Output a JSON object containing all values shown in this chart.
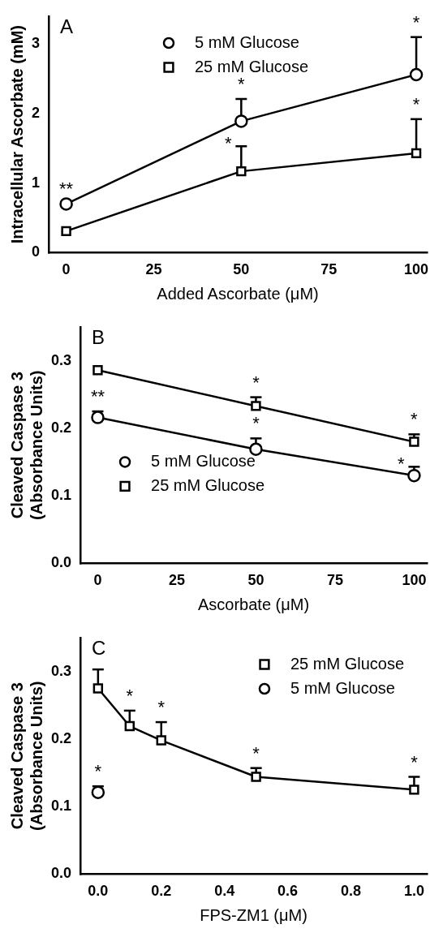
{
  "chart_data": [
    {
      "type": "line",
      "title": "A",
      "xlabel": "Added Ascorbate (μM)",
      "ylabel": "Intracellular Ascorbate (mM)",
      "x": [
        0,
        50,
        100
      ],
      "xlim": [
        -5,
        103
      ],
      "xticks": [
        0,
        25,
        50,
        75,
        100
      ],
      "ylim": [
        0,
        3.4
      ],
      "yticks": [
        0,
        1,
        2,
        3
      ],
      "grid": false,
      "legend": "top",
      "series": [
        {
          "name": "5 mM Glucose",
          "color": "#000000",
          "marker": "circle",
          "values": [
            0.7,
            1.89,
            2.56
          ],
          "errors": [
            null,
            [
              1.89,
              2.21
            ],
            [
              2.56,
              3.1
            ]
          ]
        },
        {
          "name": "25 mM Glucose",
          "color": "#000000",
          "marker": "square",
          "values": [
            0.31,
            1.17,
            1.43
          ],
          "errors": [
            null,
            [
              1.17,
              1.53
            ],
            [
              1.43,
              1.92
            ]
          ]
        }
      ],
      "annotations": [
        {
          "text": "*",
          "x": 100,
          "y": 3.1
        },
        {
          "text": "*",
          "x": 50,
          "y": 2.21
        },
        {
          "text": "*",
          "x": 100,
          "y": 1.92
        },
        {
          "text": "*",
          "x": 50,
          "y": 1.53
        },
        {
          "text": "**",
          "x": 0,
          "y": 0.7
        }
      ]
    },
    {
      "type": "line",
      "title": "B",
      "xlabel": "Ascorbate (μM)",
      "ylabel": "Cleaved Caspase 3 (Absorbance Units)",
      "x": [
        0,
        50,
        100
      ],
      "xlim": [
        -5.5,
        104
      ],
      "xticks": [
        0,
        25,
        50,
        75,
        100
      ],
      "ylim": [
        0,
        0.35
      ],
      "yticks": [
        {
          "value": 0,
          "label": "0.0"
        },
        0.1,
        0.2,
        0.3
      ],
      "grid": false,
      "legend": "bottom left",
      "series": [
        {
          "name": "5 mM Glucose",
          "color": "#000000",
          "marker": "circle",
          "values": [
            0.216,
            0.169,
            0.13
          ],
          "errors": [
            [
              0.216,
              0.225
            ],
            [
              0.169,
              0.185
            ],
            [
              0.13,
              0.143
            ]
          ]
        },
        {
          "name": "25 mM Glucose",
          "color": "#000000",
          "marker": "square",
          "values": [
            0.286,
            0.233,
            0.18
          ],
          "errors": [
            null,
            [
              0.233,
              0.246
            ],
            [
              0.18,
              0.191
            ]
          ]
        }
      ],
      "annotations": [
        {
          "text": "**",
          "x": 0,
          "y": 0.225
        },
        {
          "text": "*",
          "x": 50,
          "y": 0.246
        },
        {
          "text": "*",
          "x": 50,
          "y": 0.185
        },
        {
          "text": "*",
          "x": 100,
          "y": 0.191
        },
        {
          "text": "*",
          "x": 100,
          "y": 0.143
        }
      ]
    },
    {
      "type": "line",
      "title": "C",
      "xlabel": "FPS-ZM1 (μM)",
      "ylabel": "Cleaved Caspase 3 (Absorbance Units)",
      "x": [
        0,
        0.1,
        0.2,
        0.5,
        1
      ],
      "xlim": [
        -0.056,
        1.04
      ],
      "xticks": [
        {
          "value": 0,
          "label": "0.0"
        },
        0.2,
        0.4,
        0.6,
        0.8,
        {
          "value": 1,
          "label": "1.0"
        }
      ],
      "ylim": [
        0,
        0.35
      ],
      "yticks": [
        {
          "value": 0,
          "label": "0.0"
        },
        0.1,
        0.2,
        0.3
      ],
      "grid": false,
      "legend": "top right",
      "series": [
        {
          "name": "25 mM Glucose",
          "color": "#000000",
          "marker": "square",
          "values": [
            0.275,
            0.219,
            0.198,
            0.144,
            0.125
          ],
          "errors": [
            [
              0.275,
              0.303
            ],
            [
              0.219,
              0.242
            ],
            [
              0.198,
              0.225
            ],
            [
              0.144,
              0.157
            ],
            [
              0.125,
              0.144
            ]
          ]
        },
        {
          "name": "5 mM Glucose",
          "type": "scatter",
          "color": "#000000",
          "marker": "circle",
          "x": [
            0
          ],
          "values": [
            0.121
          ],
          "errors": [
            [
              0.121,
              0.13
            ]
          ]
        }
      ],
      "annotations": [
        {
          "text": "*",
          "x": 0.1,
          "y": 0.242
        },
        {
          "text": "*",
          "x": 0.2,
          "y": 0.225
        },
        {
          "text": "*",
          "x": 0.5,
          "y": 0.157
        },
        {
          "text": "*",
          "x": 1,
          "y": 0.144
        },
        {
          "text": "*",
          "x": 0,
          "y": 0.13
        }
      ]
    }
  ]
}
